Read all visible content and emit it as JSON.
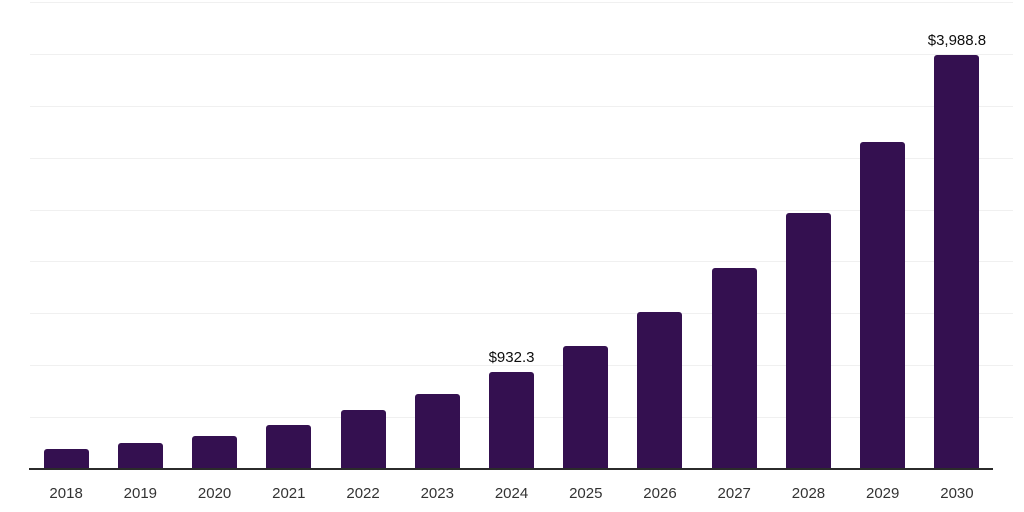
{
  "chart_data": {
    "type": "bar",
    "title": "",
    "xlabel": "",
    "ylabel": "",
    "categories": [
      "2018",
      "2019",
      "2020",
      "2021",
      "2022",
      "2023",
      "2024",
      "2025",
      "2026",
      "2027",
      "2028",
      "2029",
      "2030"
    ],
    "values": [
      195,
      250,
      318,
      420,
      565,
      720,
      932.3,
      1190,
      1515,
      1935,
      2465,
      3150,
      3988.8
    ],
    "value_labels": [
      "",
      "",
      "",
      "",
      "",
      "",
      "$932.3",
      "",
      "",
      "",
      "",
      "",
      "$3,988.8"
    ],
    "ylim": [
      0,
      4500
    ],
    "gridline_step": 500,
    "grid": true,
    "legend_position": "none"
  },
  "colors": {
    "bar": "#341050",
    "gridline": "#f0f0f0",
    "axis_line": "#2b2b2b",
    "tick_label": "#333333",
    "data_label": "#0d0d0d",
    "background": "#ffffff"
  }
}
